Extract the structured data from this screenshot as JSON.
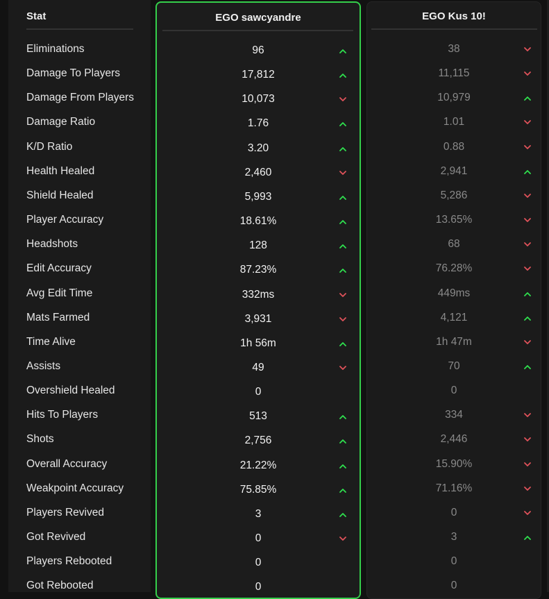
{
  "headers": {
    "stat": "Stat",
    "player1": "EGO sawcyandre",
    "player2": "EGO Kus 10!"
  },
  "colors": {
    "up": "#2fe04e",
    "down": "#e0525a",
    "highlight_border": "#35d04b"
  },
  "rows": [
    {
      "label": "Eliminations",
      "p1": "96",
      "p1_trend": "up",
      "p2": "38",
      "p2_trend": "down"
    },
    {
      "label": "Damage To Players",
      "p1": "17,812",
      "p1_trend": "up",
      "p2": "11,115",
      "p2_trend": "down"
    },
    {
      "label": "Damage From Players",
      "p1": "10,073",
      "p1_trend": "down",
      "p2": "10,979",
      "p2_trend": "up"
    },
    {
      "label": "Damage Ratio",
      "p1": "1.76",
      "p1_trend": "up",
      "p2": "1.01",
      "p2_trend": "down"
    },
    {
      "label": "K/D Ratio",
      "p1": "3.20",
      "p1_trend": "up",
      "p2": "0.88",
      "p2_trend": "down"
    },
    {
      "label": "Health Healed",
      "p1": "2,460",
      "p1_trend": "down",
      "p2": "2,941",
      "p2_trend": "up"
    },
    {
      "label": "Shield Healed",
      "p1": "5,993",
      "p1_trend": "up",
      "p2": "5,286",
      "p2_trend": "down"
    },
    {
      "label": "Player Accuracy",
      "p1": "18.61%",
      "p1_trend": "up",
      "p2": "13.65%",
      "p2_trend": "down"
    },
    {
      "label": "Headshots",
      "p1": "128",
      "p1_trend": "up",
      "p2": "68",
      "p2_trend": "down"
    },
    {
      "label": "Edit Accuracy",
      "p1": "87.23%",
      "p1_trend": "up",
      "p2": "76.28%",
      "p2_trend": "down"
    },
    {
      "label": "Avg Edit Time",
      "p1": "332ms",
      "p1_trend": "down",
      "p2": "449ms",
      "p2_trend": "up"
    },
    {
      "label": "Mats Farmed",
      "p1": "3,931",
      "p1_trend": "down",
      "p2": "4,121",
      "p2_trend": "up"
    },
    {
      "label": "Time Alive",
      "p1": "1h 56m",
      "p1_trend": "up",
      "p2": "1h 47m",
      "p2_trend": "down"
    },
    {
      "label": "Assists",
      "p1": "49",
      "p1_trend": "down",
      "p2": "70",
      "p2_trend": "up"
    },
    {
      "label": "Overshield Healed",
      "p1": "0",
      "p1_trend": "none",
      "p2": "0",
      "p2_trend": "none"
    },
    {
      "label": "Hits To Players",
      "p1": "513",
      "p1_trend": "up",
      "p2": "334",
      "p2_trend": "down"
    },
    {
      "label": "Shots",
      "p1": "2,756",
      "p1_trend": "up",
      "p2": "2,446",
      "p2_trend": "down"
    },
    {
      "label": "Overall Accuracy",
      "p1": "21.22%",
      "p1_trend": "up",
      "p2": "15.90%",
      "p2_trend": "down"
    },
    {
      "label": "Weakpoint Accuracy",
      "p1": "75.85%",
      "p1_trend": "up",
      "p2": "71.16%",
      "p2_trend": "down"
    },
    {
      "label": "Players Revived",
      "p1": "3",
      "p1_trend": "up",
      "p2": "0",
      "p2_trend": "down"
    },
    {
      "label": "Got Revived",
      "p1": "0",
      "p1_trend": "down",
      "p2": "3",
      "p2_trend": "up"
    },
    {
      "label": "Players Rebooted",
      "p1": "0",
      "p1_trend": "none",
      "p2": "0",
      "p2_trend": "none"
    },
    {
      "label": "Got Rebooted",
      "p1": "0",
      "p1_trend": "none",
      "p2": "0",
      "p2_trend": "none"
    }
  ]
}
